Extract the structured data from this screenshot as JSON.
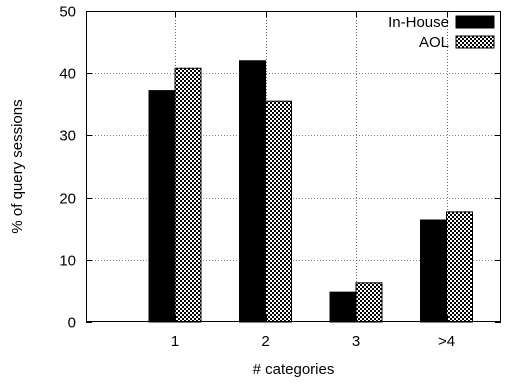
{
  "chart_data": {
    "type": "bar",
    "categories": [
      "1",
      "2",
      "3",
      ">4"
    ],
    "series": [
      {
        "name": "In-House",
        "values": [
          37.2,
          42.0,
          4.8,
          16.4
        ],
        "color": "#000000",
        "pattern": "solid"
      },
      {
        "name": "AOL",
        "values": [
          40.8,
          35.5,
          6.3,
          17.7
        ],
        "color": "#ffffff",
        "pattern": "checkered"
      }
    ],
    "title": "",
    "xlabel": "# categories",
    "ylabel": "% of query sessions",
    "ylim": [
      0,
      50
    ],
    "yticks": [
      "0",
      "10",
      "20",
      "30",
      "40",
      "50"
    ],
    "grid": true,
    "legend_position": "top-right"
  }
}
